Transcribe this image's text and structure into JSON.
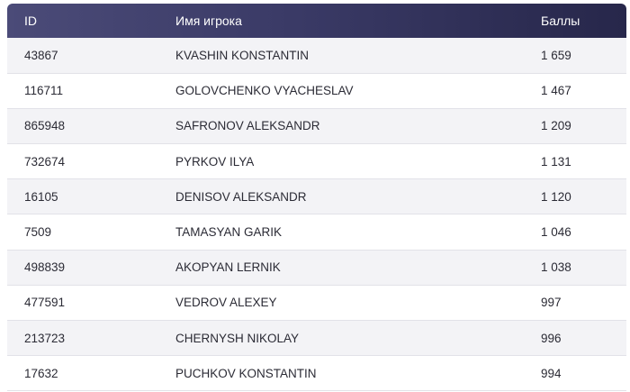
{
  "table": {
    "headers": {
      "id": "ID",
      "name": "Имя игрока",
      "score": "Баллы"
    },
    "rows": [
      {
        "id": "43867",
        "name": "KVASHIN KONSTANTIN",
        "score": "1 659"
      },
      {
        "id": "116711",
        "name": "GOLOVCHENKO VYACHESLAV",
        "score": "1 467"
      },
      {
        "id": "865948",
        "name": "SAFRONOV ALEKSANDR",
        "score": "1 209"
      },
      {
        "id": "732674",
        "name": "PYRKOV ILYA",
        "score": "1 131"
      },
      {
        "id": "16105",
        "name": "DENISOV ALEKSANDR",
        "score": "1 120"
      },
      {
        "id": "7509",
        "name": "TAMASYAN GARIK",
        "score": "1 046"
      },
      {
        "id": "498839",
        "name": "AKOPYAN LERNIK",
        "score": "1 038"
      },
      {
        "id": "477591",
        "name": "VEDROV ALEXEY",
        "score": "997"
      },
      {
        "id": "213723",
        "name": "CHERNYSH NIKOLAY",
        "score": "996"
      },
      {
        "id": "17632",
        "name": "PUCHKOV KONSTANTIN",
        "score": "994"
      }
    ]
  }
}
